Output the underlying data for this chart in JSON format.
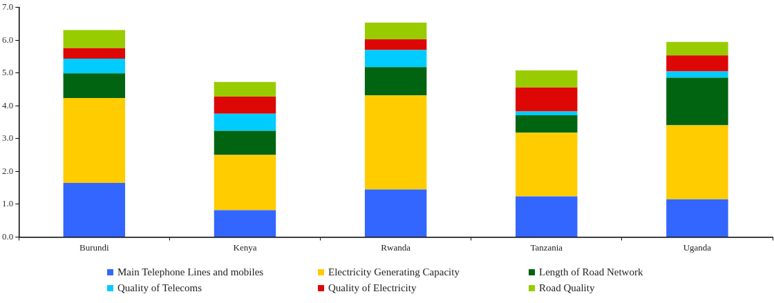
{
  "chart_data": {
    "type": "bar",
    "stacked": true,
    "categories": [
      "Burundi",
      "Kenya",
      "Rwanda",
      "Tanzania",
      "Uganda"
    ],
    "series": [
      {
        "name": "Main Telephone Lines and mobiles",
        "color": "#3366ff",
        "values": [
          1.65,
          0.82,
          1.45,
          1.24,
          1.15
        ]
      },
      {
        "name": "Electricity Generating Capacity",
        "color": "#ffcc00",
        "values": [
          2.59,
          1.68,
          2.87,
          1.94,
          2.26
        ]
      },
      {
        "name": "Length of Road Network",
        "color": "#006411",
        "values": [
          0.75,
          0.74,
          0.86,
          0.53,
          1.45
        ]
      },
      {
        "name": "Quality of Telecoms",
        "color": "#00ccff",
        "values": [
          0.45,
          0.52,
          0.52,
          0.12,
          0.19
        ]
      },
      {
        "name": "Quality of Electricity",
        "color": "#dd0806",
        "values": [
          0.32,
          0.52,
          0.33,
          0.73,
          0.49
        ]
      },
      {
        "name": "Road Quality",
        "color": "#99cc00",
        "values": [
          0.55,
          0.45,
          0.51,
          0.52,
          0.41
        ]
      }
    ],
    "ylim": [
      0,
      7
    ],
    "yticks": [
      {
        "value": 0,
        "label": "0.0"
      },
      {
        "value": 1,
        "label": "1.0"
      },
      {
        "value": 2,
        "label": "2.0"
      },
      {
        "value": 3,
        "label": "3.0"
      },
      {
        "value": 4,
        "label": "4.0"
      },
      {
        "value": 5,
        "label": "5.0"
      },
      {
        "value": 6,
        "label": "6.0"
      },
      {
        "value": 7,
        "label": "7.0"
      }
    ],
    "grid": false,
    "legend": "bottom"
  }
}
